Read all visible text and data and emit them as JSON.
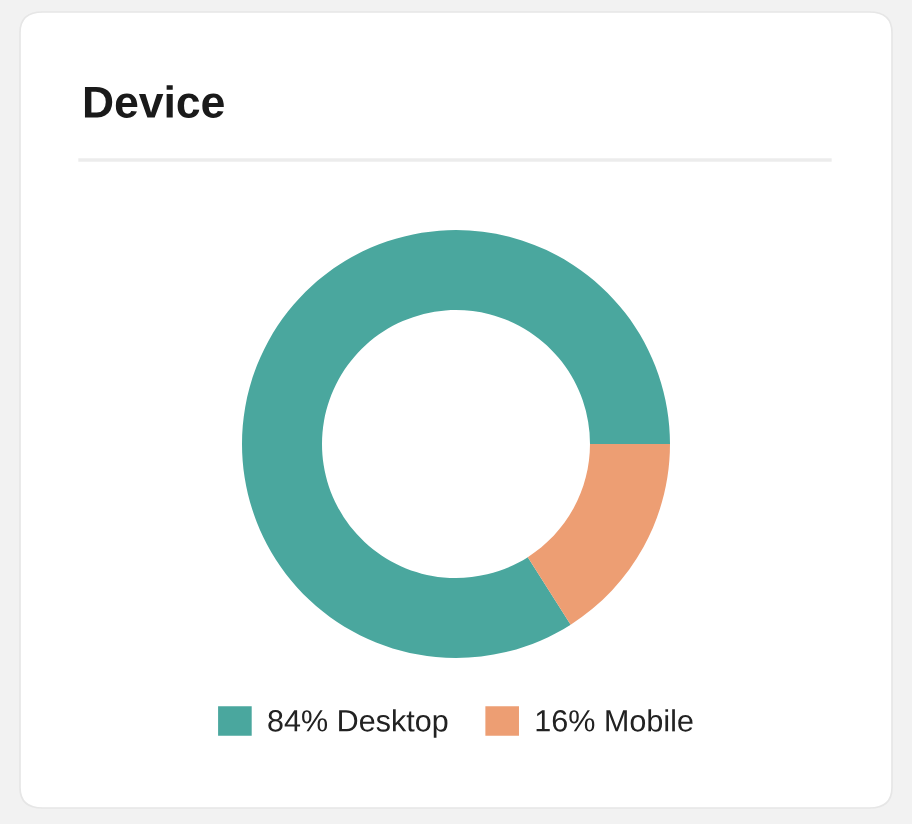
{
  "chart_data": {
    "type": "donut",
    "title": "Device",
    "categories": [
      "Desktop",
      "Mobile"
    ],
    "values": [
      84,
      16
    ],
    "value_labels": [
      "84%",
      "16%"
    ],
    "colors": [
      "#4aa79e",
      "#ed9e73"
    ],
    "legend": "bottom"
  }
}
